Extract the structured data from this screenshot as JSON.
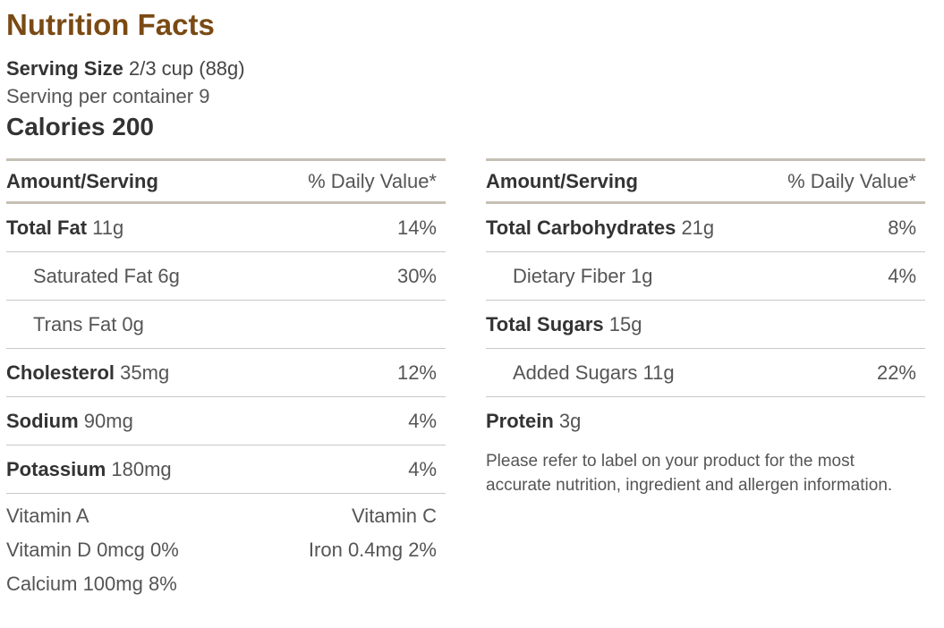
{
  "title": "Nutrition Facts",
  "serving_size_label": "Serving Size",
  "serving_size_value": "2/3 cup (88g)",
  "servings_per_container": "Serving per container 9",
  "calories": "Calories 200",
  "header": {
    "amount": "Amount/Serving",
    "daily_value": "% Daily Value*"
  },
  "left": {
    "total_fat": {
      "label": "Total Fat",
      "value": "11g",
      "pct": "14%"
    },
    "saturated_fat": {
      "label": "Saturated Fat 6g",
      "pct": "30%"
    },
    "trans_fat": {
      "label": "Trans Fat 0g",
      "pct": ""
    },
    "cholesterol": {
      "label": "Cholesterol",
      "value": "35mg",
      "pct": "12%"
    },
    "sodium": {
      "label": "Sodium",
      "value": "90mg",
      "pct": "4%"
    },
    "potassium": {
      "label": "Potassium",
      "value": "180mg",
      "pct": "4%"
    }
  },
  "vitamins": {
    "vitamin_a": "Vitamin A",
    "vitamin_c": "Vitamin C",
    "vitamin_d": "Vitamin D 0mcg 0%",
    "iron": "Iron 0.4mg 2%",
    "calcium": "Calcium 100mg 8%"
  },
  "right": {
    "total_carbs": {
      "label": "Total Carbohydrates",
      "value": "21g",
      "pct": "8%"
    },
    "dietary_fiber": {
      "label": "Dietary Fiber 1g",
      "pct": "4%"
    },
    "total_sugars": {
      "label": "Total Sugars",
      "value": "15g",
      "pct": ""
    },
    "added_sugars": {
      "label": "Added Sugars 11g",
      "pct": "22%"
    },
    "protein": {
      "label": "Protein",
      "value": "3g",
      "pct": ""
    }
  },
  "note": "Please refer to label on your product for the most accurate nutrition, ingredient and allergen information."
}
